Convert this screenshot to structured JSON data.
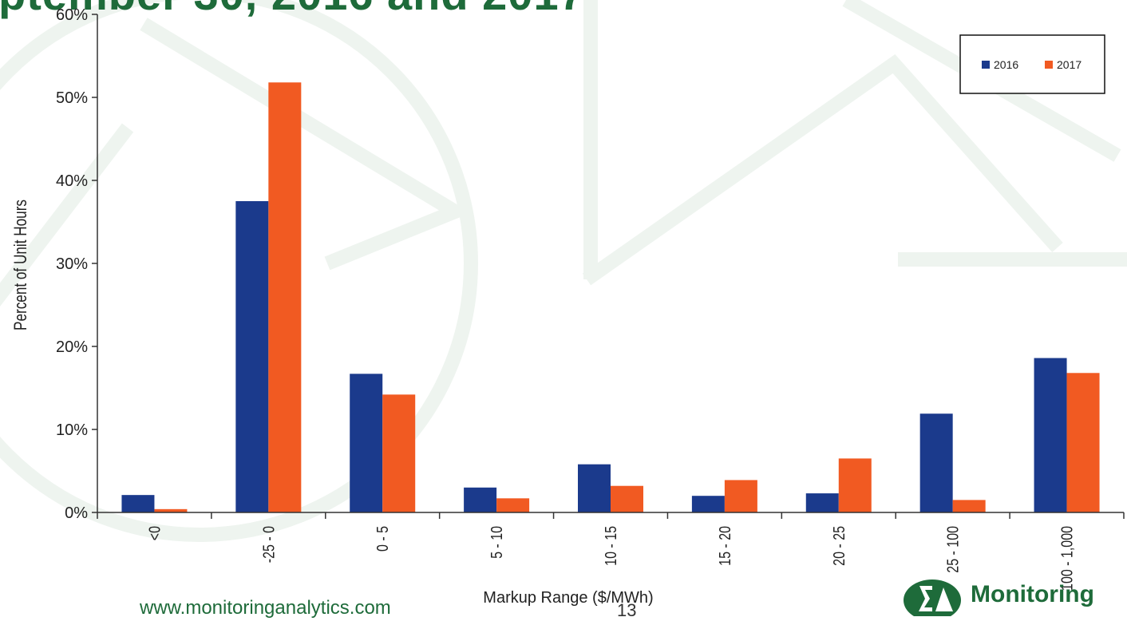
{
  "slide": {
    "title": "ptember 30, 2016 and 2017",
    "footer_url": "www.monitoringanalytics.com",
    "page_number": "13",
    "logo_text": "Monitoring",
    "brand_color": "#1e6b3a"
  },
  "chart_data": {
    "type": "bar",
    "categories": [
      "<0",
      "-25 - 0",
      "0 - 5",
      "5 - 10",
      "10 - 15",
      "15 - 20",
      "20 - 25",
      "25 - 100",
      "100 - 1,000"
    ],
    "series": [
      {
        "name": "2016",
        "color": "#1b3a8c",
        "values": [
          2.1,
          37.5,
          16.7,
          3.0,
          5.8,
          2.0,
          2.3,
          11.9,
          18.6
        ]
      },
      {
        "name": "2017",
        "color": "#f15a22",
        "values": [
          0.4,
          51.8,
          14.2,
          1.7,
          3.2,
          3.9,
          6.5,
          1.5,
          16.8
        ]
      }
    ],
    "title": "",
    "xlabel": "Markup Range ($/MWh)",
    "ylabel": "Percent of Unit Hours",
    "ylim": [
      0,
      60
    ],
    "yticks": [
      "0%",
      "10%",
      "20%",
      "30%",
      "40%",
      "50%",
      "60%"
    ],
    "grid": false,
    "legend": "top-right"
  }
}
